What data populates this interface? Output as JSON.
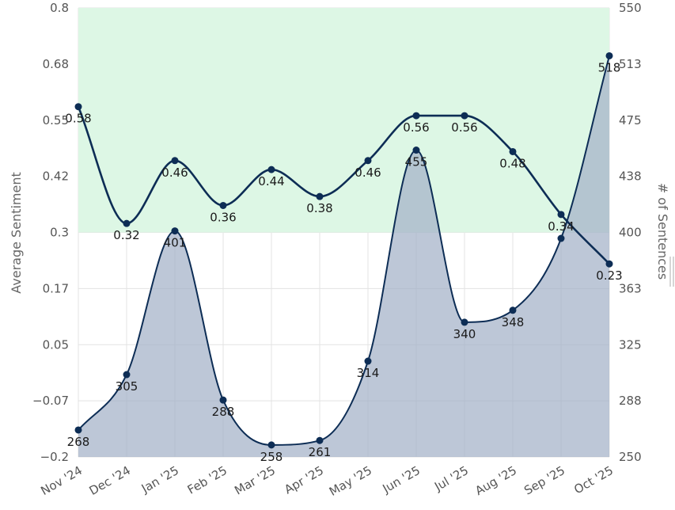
{
  "chart_data": {
    "type": "line",
    "categories": [
      "Nov '24",
      "Dec '24",
      "Jan '25",
      "Feb '25",
      "Mar '25",
      "Apr '25",
      "May '25",
      "Jun '25",
      "Jul '25",
      "Aug '25",
      "Sep '25",
      "Oct '25"
    ],
    "series": [
      {
        "axis": "left",
        "style": "line",
        "values": [
          0.58,
          0.32,
          0.46,
          0.36,
          0.44,
          0.38,
          0.46,
          0.56,
          0.56,
          0.48,
          0.34,
          0.23
        ],
        "labels": [
          "0.58",
          "0.32",
          "0.46",
          "0.36",
          "0.44",
          "0.38",
          "0.46",
          "0.56",
          "0.56",
          "0.48",
          "0.34",
          "0.23"
        ]
      },
      {
        "axis": "right",
        "style": "area",
        "values": [
          268,
          305,
          401,
          288,
          258,
          261,
          314,
          455,
          340,
          348,
          396,
          518
        ],
        "labels": [
          "268",
          "305",
          "401",
          "288",
          "258",
          "261",
          "314",
          "455",
          "340",
          "348",
          "",
          "518"
        ]
      }
    ],
    "ylabel": "Average Sentiment",
    "ylabel_right": "# of Sentences",
    "ylim": [
      -0.2,
      0.8
    ],
    "ylim_right": [
      250,
      550
    ],
    "yticks": [
      "0.8",
      "0.68",
      "0.55",
      "0.42",
      "0.3",
      "0.17",
      "0.05",
      "−0.07",
      "−0.2"
    ],
    "yticks_right": [
      "550",
      "513",
      "475",
      "438",
      "400",
      "363",
      "325",
      "288",
      "250"
    ],
    "positive_band": [
      0.3,
      0.8
    ],
    "grid": true,
    "colors": {
      "line": "#0d2d55",
      "area_fill": "#a4b2c7",
      "band_fill": "#ddf7e5",
      "grid": "#e3e3e3"
    }
  }
}
